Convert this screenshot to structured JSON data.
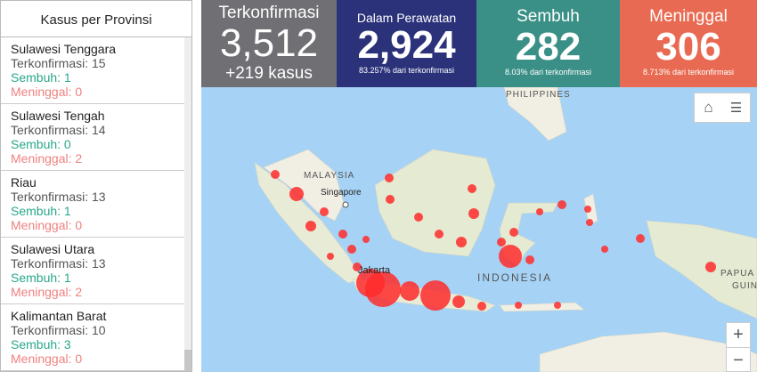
{
  "sidebar": {
    "title": "Kasus per Provinsi",
    "items": [
      {
        "name": "Sulawesi Tenggara",
        "confirmed": "Terkonfirmasi: 15",
        "recovered": "Sembuh: 1",
        "deaths": "Meninggal: 0"
      },
      {
        "name": "Sulawesi Tengah",
        "confirmed": "Terkonfirmasi: 14",
        "recovered": "Sembuh: 0",
        "deaths": "Meninggal: 2"
      },
      {
        "name": "Riau",
        "confirmed": "Terkonfirmasi: 13",
        "recovered": "Sembuh: 1",
        "deaths": "Meninggal: 0"
      },
      {
        "name": "Sulawesi Utara",
        "confirmed": "Terkonfirmasi: 13",
        "recovered": "Sembuh: 1",
        "deaths": "Meninggal: 2"
      },
      {
        "name": "Kalimantan Barat",
        "confirmed": "Terkonfirmasi: 10",
        "recovered": "Sembuh: 3",
        "deaths": "Meninggal: 0"
      }
    ]
  },
  "cards": [
    {
      "title": "Terkonfirmasi",
      "value": "3,512",
      "footer": "+219 kasus",
      "color": "#6f6f74"
    },
    {
      "title": "Dalam Perawatan",
      "value": "2,924",
      "footer": "83.257% dari terkonfirmasi",
      "color": "#2b327a"
    },
    {
      "title": "Sembuh",
      "value": "282",
      "footer": "8.03% dari terkonfirmasi",
      "color": "#3a9086"
    },
    {
      "title": "Meninggal",
      "value": "306",
      "footer": "8.713% dari terkonfirmasi",
      "color": "#e96a52"
    }
  ],
  "map": {
    "labels": {
      "malaysia": "MALAYSIA",
      "singapore": "Singapore",
      "philippines": "PHILIPPINES",
      "jakarta": "Jakarta",
      "indonesia": "INDONESIA",
      "papua": "PAPUA",
      "guinea": "GUIN"
    },
    "zoom_in": "+",
    "zoom_out": "−",
    "marker_color": "#ff2b2b"
  }
}
